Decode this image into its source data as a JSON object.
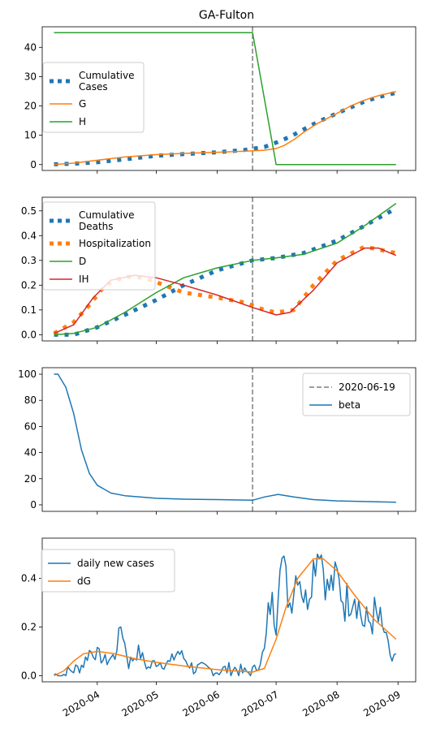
{
  "chart_data": [
    {
      "type": "line",
      "title": "GA-Fulton",
      "xlim": [
        "2020-03-04",
        "2020-09-10"
      ],
      "ylim": [
        -2,
        47
      ],
      "yticks": [
        0,
        10,
        20,
        30,
        40
      ],
      "legend_position": "center-left",
      "vline": {
        "x": "2020-06-19"
      },
      "series": [
        {
          "name": "Cumulative\nCases",
          "style": "dotted",
          "color": "#1f77b4",
          "lw": 5,
          "points": [
            [
              "2020-03-10",
              0.1
            ],
            [
              "2020-03-20",
              0.3
            ],
            [
              "2020-04-01",
              0.8
            ],
            [
              "2020-04-15",
              1.8
            ],
            [
              "2020-05-01",
              3.0
            ],
            [
              "2020-05-15",
              3.6
            ],
            [
              "2020-06-01",
              4.2
            ],
            [
              "2020-06-15",
              5.0
            ],
            [
              "2020-06-25",
              6.0
            ],
            [
              "2020-07-01",
              7.5
            ],
            [
              "2020-07-08",
              9.5
            ],
            [
              "2020-07-15",
              12.0
            ],
            [
              "2020-07-22",
              14.5
            ],
            [
              "2020-08-01",
              17.5
            ],
            [
              "2020-08-08",
              19.5
            ],
            [
              "2020-08-15",
              21.5
            ],
            [
              "2020-08-22",
              23.0
            ],
            [
              "2020-08-31",
              24.5
            ]
          ]
        },
        {
          "name": "G",
          "style": "solid",
          "color": "#ff7f0e",
          "lw": 1.5,
          "points": [
            [
              "2020-03-10",
              0.05
            ],
            [
              "2020-03-20",
              0.5
            ],
            [
              "2020-04-01",
              1.5
            ],
            [
              "2020-04-15",
              2.6
            ],
            [
              "2020-05-01",
              3.4
            ],
            [
              "2020-05-15",
              3.8
            ],
            [
              "2020-06-01",
              4.2
            ],
            [
              "2020-06-15",
              4.6
            ],
            [
              "2020-06-25",
              4.9
            ],
            [
              "2020-07-01",
              5.5
            ],
            [
              "2020-07-05",
              6.5
            ],
            [
              "2020-07-10",
              8.5
            ],
            [
              "2020-07-15",
              11.0
            ],
            [
              "2020-07-22",
              14.0
            ],
            [
              "2020-08-01",
              17.5
            ],
            [
              "2020-08-08",
              20.0
            ],
            [
              "2020-08-15",
              22.0
            ],
            [
              "2020-08-22",
              23.5
            ],
            [
              "2020-08-31",
              24.9
            ]
          ]
        },
        {
          "name": "H",
          "style": "solid",
          "color": "#2ca02c",
          "lw": 1.5,
          "points": [
            [
              "2020-03-10",
              45
            ],
            [
              "2020-06-19",
              45
            ],
            [
              "2020-07-01",
              0
            ],
            [
              "2020-08-31",
              0
            ]
          ]
        }
      ]
    },
    {
      "type": "line",
      "xlim": [
        "2020-03-04",
        "2020-09-10"
      ],
      "ylim": [
        -0.025,
        0.555
      ],
      "yticks": [
        0.0,
        0.1,
        0.2,
        0.3,
        0.4,
        0.5
      ],
      "ytick_labels": [
        "0.0",
        "0.1",
        "0.2",
        "0.3",
        "0.4",
        "0.5"
      ],
      "legend_position": "upper-left",
      "vline": {
        "x": "2020-06-19"
      },
      "series": [
        {
          "name": "Cumulative\nDeaths",
          "style": "dotted",
          "color": "#1f77b4",
          "lw": 5,
          "points": [
            [
              "2020-03-10",
              0.0
            ],
            [
              "2020-03-20",
              0.0
            ],
            [
              "2020-04-01",
              0.03
            ],
            [
              "2020-04-15",
              0.08
            ],
            [
              "2020-05-01",
              0.14
            ],
            [
              "2020-05-15",
              0.2
            ],
            [
              "2020-06-01",
              0.26
            ],
            [
              "2020-06-19",
              0.3
            ],
            [
              "2020-07-01",
              0.31
            ],
            [
              "2020-07-15",
              0.33
            ],
            [
              "2020-08-01",
              0.38
            ],
            [
              "2020-08-15",
              0.44
            ],
            [
              "2020-08-31",
              0.51
            ]
          ]
        },
        {
          "name": "Hospitalization",
          "style": "dotted",
          "color": "#ff7f0e",
          "lw": 5,
          "points": [
            [
              "2020-03-10",
              0.005
            ],
            [
              "2020-03-20",
              0.05
            ],
            [
              "2020-03-28",
              0.12
            ],
            [
              "2020-04-05",
              0.2
            ],
            [
              "2020-04-15",
              0.235
            ],
            [
              "2020-04-25",
              0.23
            ],
            [
              "2020-05-05",
              0.2
            ],
            [
              "2020-05-15",
              0.17
            ],
            [
              "2020-06-01",
              0.15
            ],
            [
              "2020-06-15",
              0.13
            ],
            [
              "2020-06-25",
              0.1
            ],
            [
              "2020-07-01",
              0.09
            ],
            [
              "2020-07-10",
              0.1
            ],
            [
              "2020-07-20",
              0.2
            ],
            [
              "2020-08-01",
              0.3
            ],
            [
              "2020-08-15",
              0.355
            ],
            [
              "2020-08-31",
              0.33
            ]
          ]
        },
        {
          "name": "D",
          "style": "solid",
          "color": "#2ca02c",
          "lw": 1.5,
          "points": [
            [
              "2020-03-10",
              0.0
            ],
            [
              "2020-03-20",
              0.005
            ],
            [
              "2020-04-01",
              0.03
            ],
            [
              "2020-04-15",
              0.09
            ],
            [
              "2020-05-01",
              0.17
            ],
            [
              "2020-05-15",
              0.23
            ],
            [
              "2020-06-01",
              0.27
            ],
            [
              "2020-06-19",
              0.3
            ],
            [
              "2020-07-01",
              0.31
            ],
            [
              "2020-07-15",
              0.325
            ],
            [
              "2020-08-01",
              0.37
            ],
            [
              "2020-08-15",
              0.44
            ],
            [
              "2020-08-31",
              0.53
            ]
          ]
        },
        {
          "name": "IH",
          "style": "solid",
          "color": "#d62728",
          "lw": 1.5,
          "points": [
            [
              "2020-03-10",
              0.005
            ],
            [
              "2020-03-20",
              0.04
            ],
            [
              "2020-03-30",
              0.15
            ],
            [
              "2020-04-08",
              0.22
            ],
            [
              "2020-04-20",
              0.24
            ],
            [
              "2020-05-01",
              0.23
            ],
            [
              "2020-05-15",
              0.2
            ],
            [
              "2020-06-01",
              0.16
            ],
            [
              "2020-06-19",
              0.11
            ],
            [
              "2020-07-01",
              0.08
            ],
            [
              "2020-07-08",
              0.09
            ],
            [
              "2020-07-20",
              0.18
            ],
            [
              "2020-08-01",
              0.29
            ],
            [
              "2020-08-15",
              0.35
            ],
            [
              "2020-08-22",
              0.35
            ],
            [
              "2020-08-31",
              0.32
            ]
          ]
        }
      ]
    },
    {
      "type": "line",
      "xlim": [
        "2020-03-04",
        "2020-09-10"
      ],
      "ylim": [
        -5,
        105
      ],
      "yticks": [
        0,
        20,
        40,
        60,
        80,
        100
      ],
      "legend_position": "upper-right",
      "vline": {
        "x": "2020-06-19",
        "name": "2020-06-19"
      },
      "series": [
        {
          "name": "beta",
          "style": "solid",
          "color": "#1f77b4",
          "lw": 1.5,
          "points": [
            [
              "2020-03-10",
              100
            ],
            [
              "2020-03-12",
              100
            ],
            [
              "2020-03-16",
              90
            ],
            [
              "2020-03-20",
              70
            ],
            [
              "2020-03-24",
              42
            ],
            [
              "2020-03-28",
              24
            ],
            [
              "2020-04-01",
              15
            ],
            [
              "2020-04-08",
              9
            ],
            [
              "2020-04-15",
              7
            ],
            [
              "2020-05-01",
              5
            ],
            [
              "2020-05-15",
              4.3
            ],
            [
              "2020-06-01",
              4
            ],
            [
              "2020-06-19",
              3.5
            ],
            [
              "2020-06-25",
              6
            ],
            [
              "2020-07-02",
              8
            ],
            [
              "2020-07-10",
              6
            ],
            [
              "2020-07-20",
              4
            ],
            [
              "2020-08-01",
              3
            ],
            [
              "2020-08-15",
              2.5
            ],
            [
              "2020-08-31",
              2
            ]
          ]
        }
      ]
    },
    {
      "type": "line",
      "xlim": [
        "2020-03-04",
        "2020-09-10"
      ],
      "ylim": [
        -0.025,
        0.565
      ],
      "yticks": [
        0.0,
        0.2,
        0.4
      ],
      "ytick_labels": [
        "0.0",
        "0.2",
        "0.4"
      ],
      "xticks": [
        "2020-04-01",
        "2020-05-01",
        "2020-06-01",
        "2020-07-01",
        "2020-08-01",
        "2020-09-01"
      ],
      "xtick_labels": [
        "2020-04",
        "2020-05",
        "2020-06",
        "2020-07",
        "2020-08",
        "2020-09"
      ],
      "legend_position": "upper-left",
      "series": [
        {
          "name": "daily new cases",
          "style": "solid",
          "color": "#1f77b4",
          "lw": 1.5,
          "noisy": true,
          "points": [
            [
              "2020-03-10",
              0.005
            ],
            [
              "2020-03-14",
              0.0
            ],
            [
              "2020-03-18",
              0.02
            ],
            [
              "2020-03-22",
              0.03
            ],
            [
              "2020-03-25",
              0.05
            ],
            [
              "2020-03-28",
              0.1
            ],
            [
              "2020-04-01",
              0.09
            ],
            [
              "2020-04-05",
              0.06
            ],
            [
              "2020-04-10",
              0.08
            ],
            [
              "2020-04-13",
              0.21
            ],
            [
              "2020-04-17",
              0.05
            ],
            [
              "2020-04-22",
              0.1
            ],
            [
              "2020-04-27",
              0.03
            ],
            [
              "2020-05-01",
              0.06
            ],
            [
              "2020-05-08",
              0.05
            ],
            [
              "2020-05-12",
              0.1
            ],
            [
              "2020-05-20",
              0.03
            ],
            [
              "2020-06-01",
              0.02
            ],
            [
              "2020-06-10",
              0.03
            ],
            [
              "2020-06-15",
              0.01
            ],
            [
              "2020-06-20",
              0.02
            ],
            [
              "2020-06-25",
              0.1
            ],
            [
              "2020-06-28",
              0.3
            ],
            [
              "2020-07-01",
              0.25
            ],
            [
              "2020-07-03",
              0.52
            ],
            [
              "2020-07-08",
              0.3
            ],
            [
              "2020-07-12",
              0.45
            ],
            [
              "2020-07-16",
              0.3
            ],
            [
              "2020-07-20",
              0.45
            ],
            [
              "2020-07-23",
              0.55
            ],
            [
              "2020-07-27",
              0.35
            ],
            [
              "2020-08-01",
              0.4
            ],
            [
              "2020-08-05",
              0.3
            ],
            [
              "2020-08-10",
              0.35
            ],
            [
              "2020-08-15",
              0.2
            ],
            [
              "2020-08-20",
              0.25
            ],
            [
              "2020-08-25",
              0.18
            ],
            [
              "2020-08-29",
              0.06
            ],
            [
              "2020-08-31",
              0.09
            ]
          ]
        },
        {
          "name": "dG",
          "style": "solid",
          "color": "#ff7f0e",
          "lw": 1.5,
          "points": [
            [
              "2020-03-10",
              0.0
            ],
            [
              "2020-03-15",
              0.02
            ],
            [
              "2020-03-20",
              0.06
            ],
            [
              "2020-03-25",
              0.09
            ],
            [
              "2020-04-01",
              0.1
            ],
            [
              "2020-04-10",
              0.09
            ],
            [
              "2020-04-20",
              0.07
            ],
            [
              "2020-05-01",
              0.055
            ],
            [
              "2020-05-15",
              0.04
            ],
            [
              "2020-06-01",
              0.025
            ],
            [
              "2020-06-19",
              0.015
            ],
            [
              "2020-06-25",
              0.03
            ],
            [
              "2020-07-01",
              0.15
            ],
            [
              "2020-07-06",
              0.28
            ],
            [
              "2020-07-12",
              0.4
            ],
            [
              "2020-07-20",
              0.48
            ],
            [
              "2020-07-25",
              0.48
            ],
            [
              "2020-08-01",
              0.43
            ],
            [
              "2020-08-10",
              0.33
            ],
            [
              "2020-08-20",
              0.23
            ],
            [
              "2020-08-31",
              0.15
            ]
          ]
        }
      ]
    }
  ]
}
